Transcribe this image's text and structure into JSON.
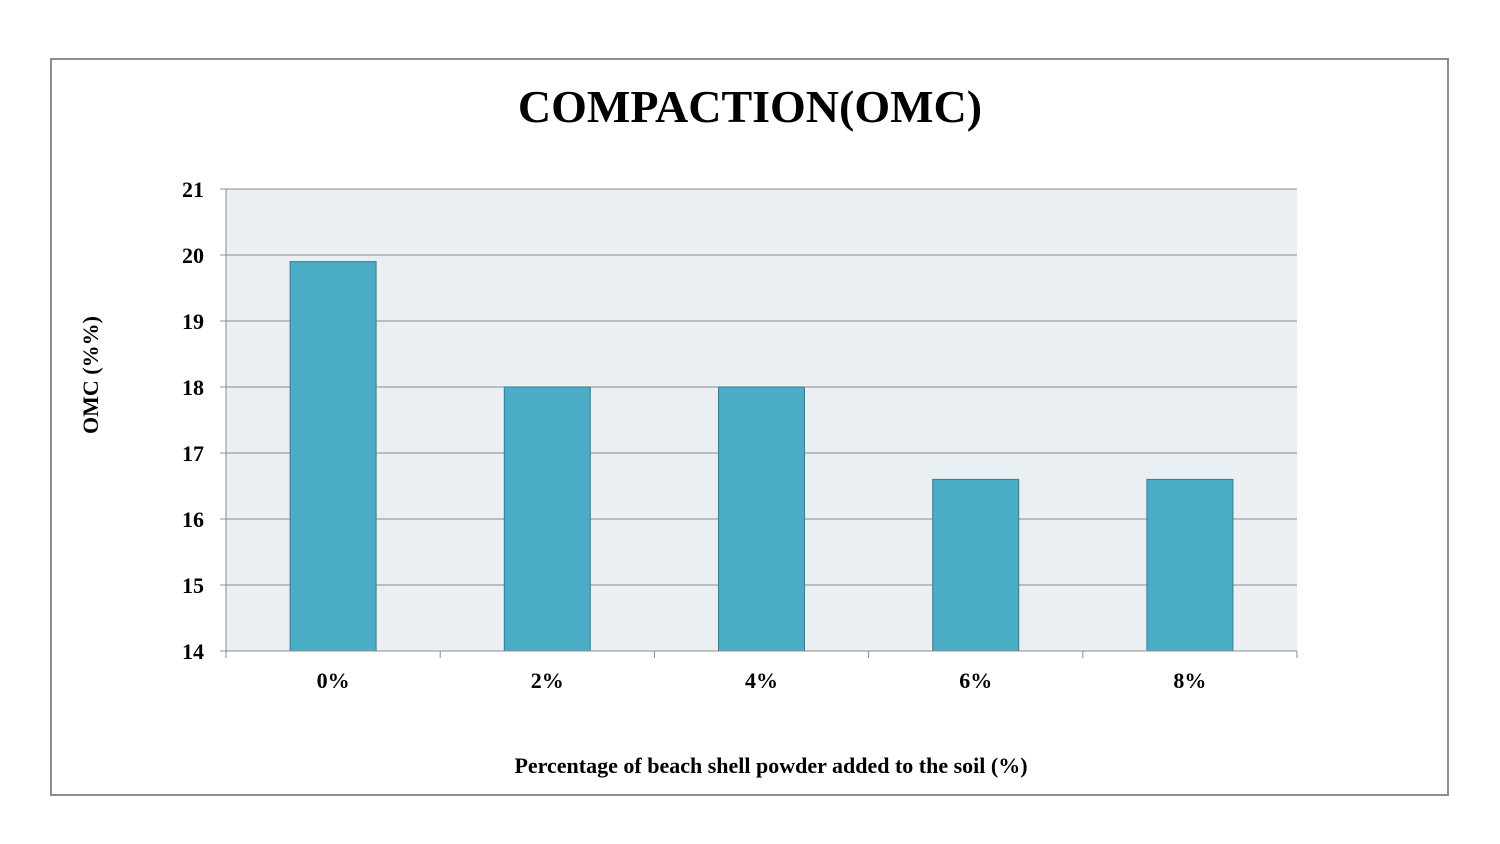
{
  "chart_data": {
    "type": "bar",
    "title": "COMPACTION(OMC)",
    "xlabel": "Percentage of beach shell powder added to the soil (%)",
    "ylabel": "OMC (%%)",
    "categories": [
      "0%",
      "2%",
      "4%",
      "6%",
      "8%"
    ],
    "values": [
      19.9,
      18.0,
      18.0,
      16.6,
      16.6
    ],
    "ylim": [
      14,
      21
    ],
    "yticks": [
      14,
      15,
      16,
      17,
      18,
      19,
      20,
      21
    ],
    "grid": true,
    "legend": "none",
    "colors": {
      "bar": "#4bacc6",
      "bar_border": "#357d91",
      "plot_background": "#e9eff3",
      "grid": "#8c8c8c",
      "axis": "#8c8c8c"
    }
  }
}
